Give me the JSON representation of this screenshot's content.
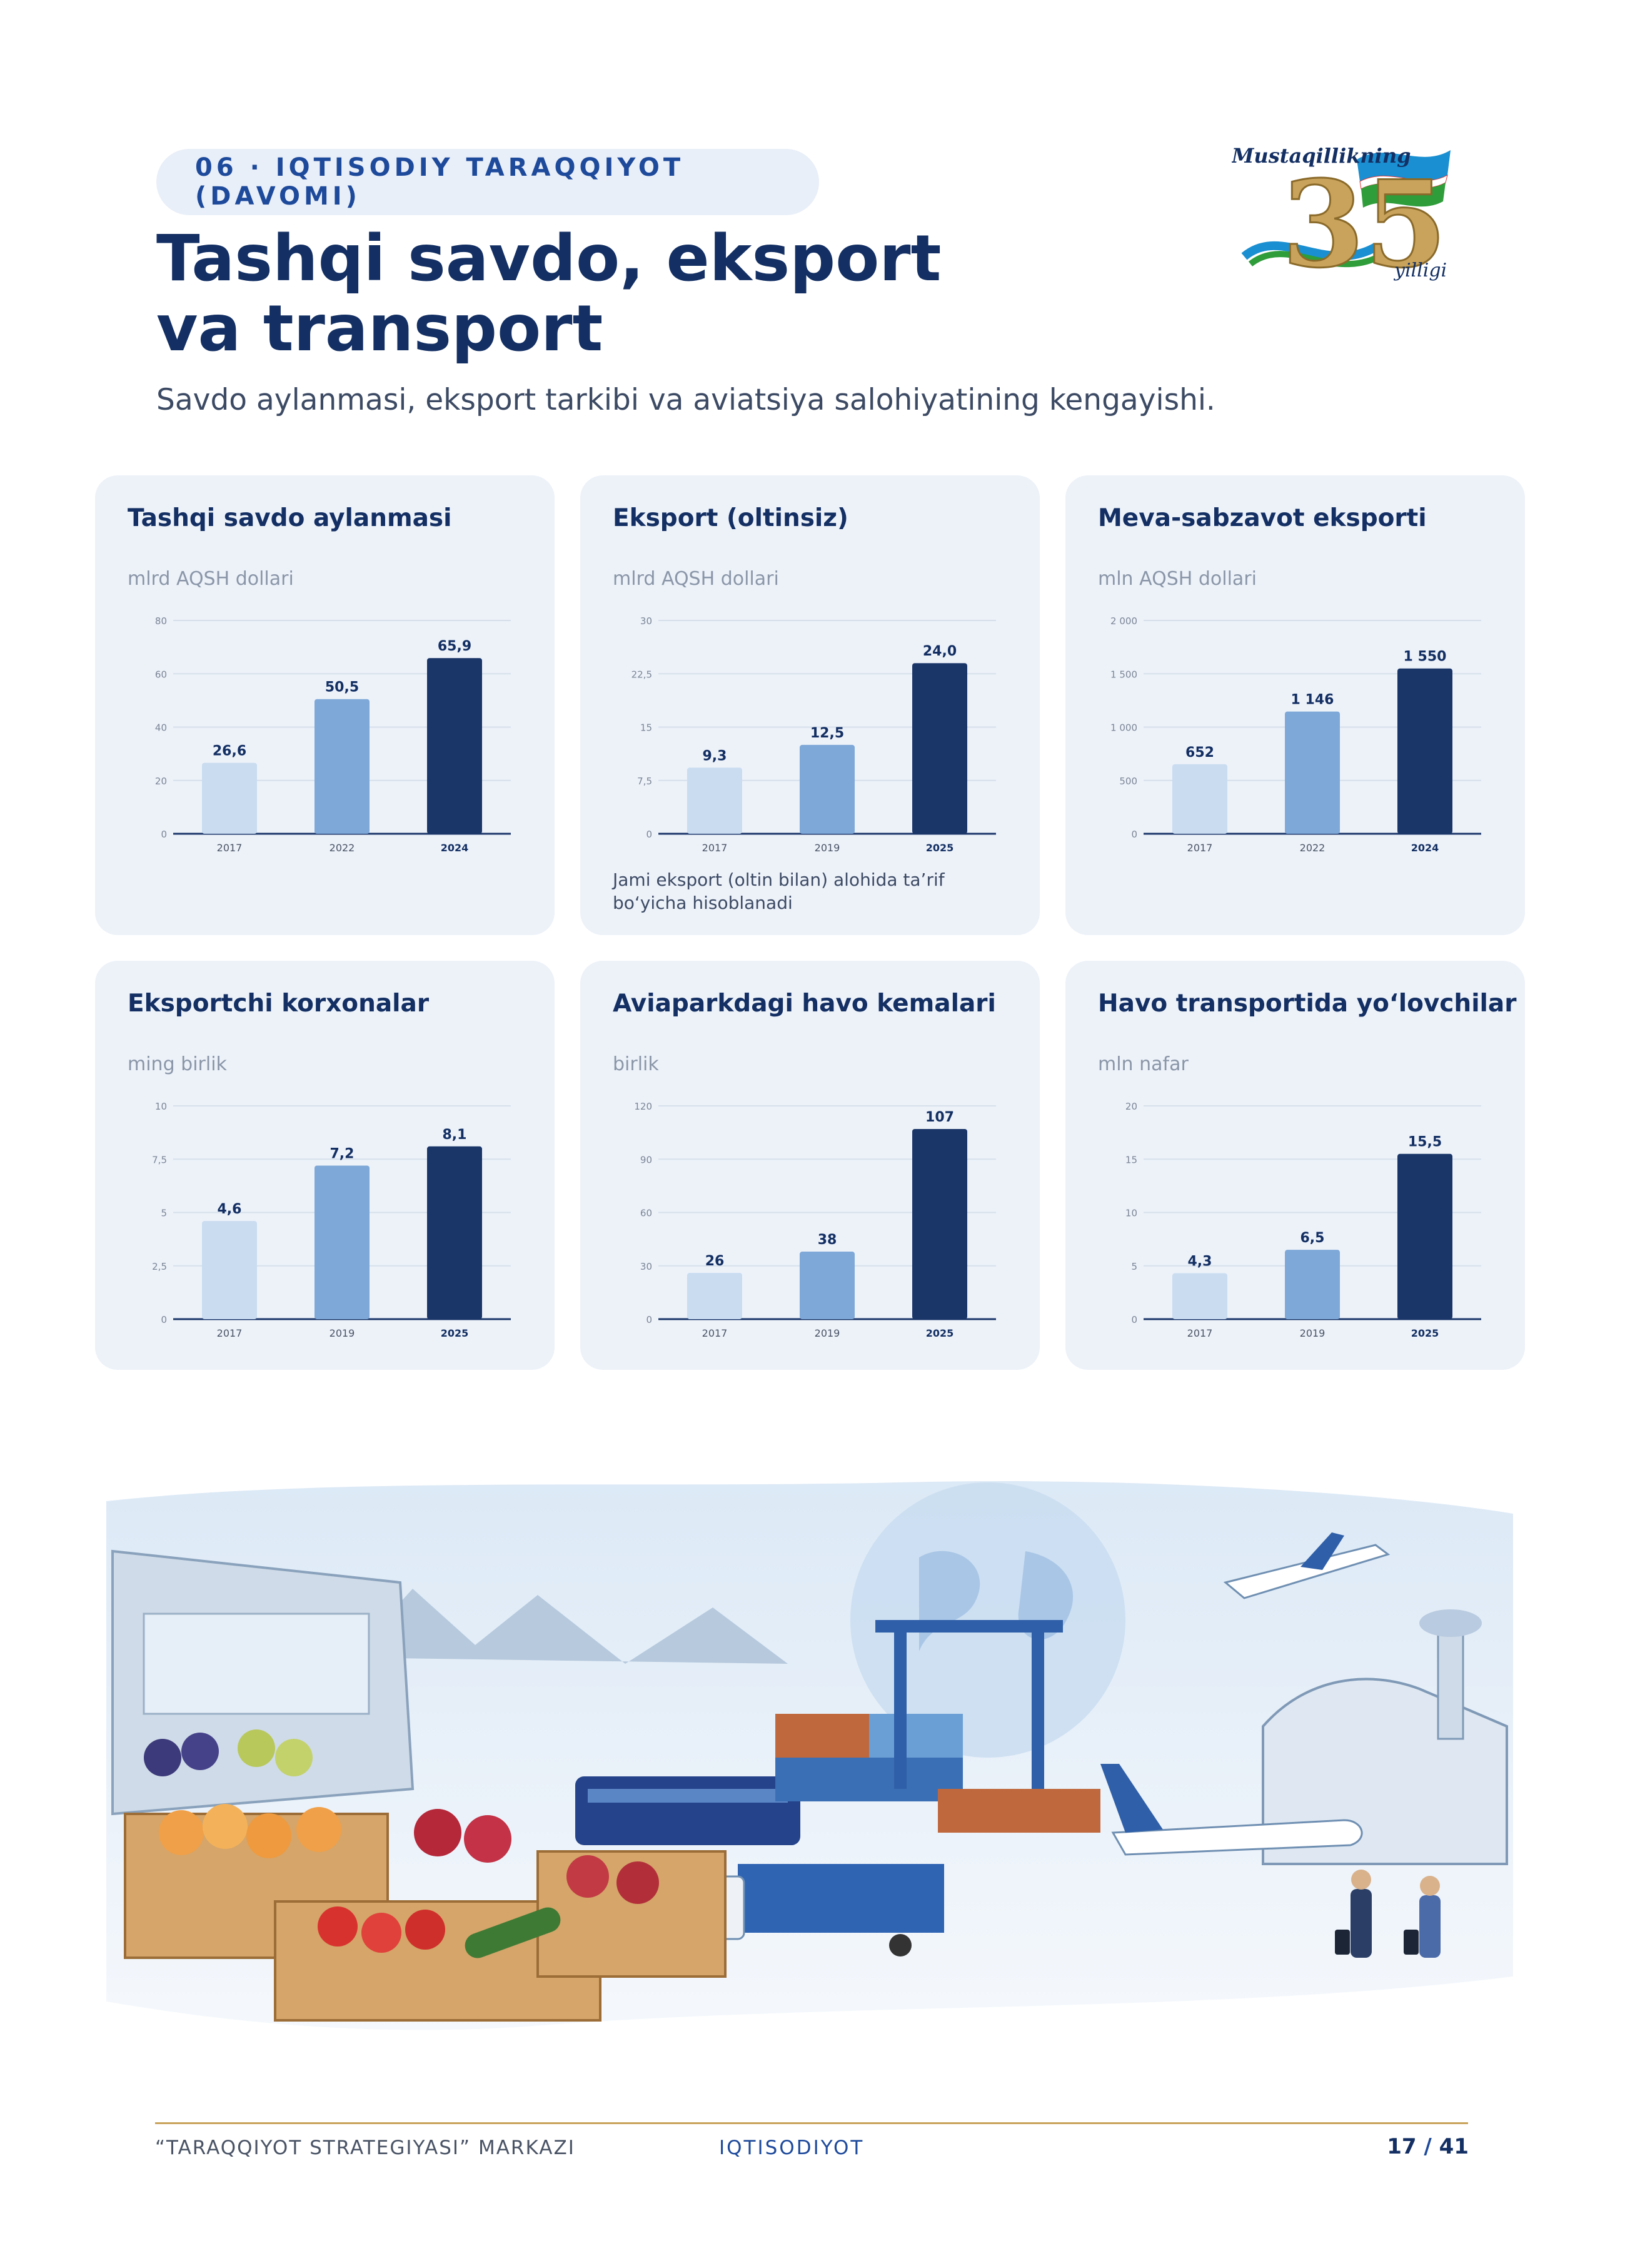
{
  "header": {
    "section_label": "06 · IQTISODIY TARAQQIYOT (DAVOMI)",
    "title": "Tashqi savdo, eksport va transport",
    "subtitle": "Savdo aylanmasi, eksport tarkibi va aviatsiya salohiyatining kengayishi."
  },
  "logo": {
    "top_text": "Mustaqillikning",
    "number": "35",
    "bottom_text": "yilligi",
    "colors": {
      "blue": "#1a8fd1",
      "green": "#2e9d3a",
      "gold": "#c9a35b"
    }
  },
  "colors": {
    "bar_light": "#c9dcf0",
    "bar_mid": "#7ea8d8",
    "bar_dark": "#1a3669",
    "card_bg": "#edf2f9",
    "accent": "#1e4a9c"
  },
  "chart_data": [
    {
      "type": "bar",
      "title": "Tashqi savdo aylanmasi",
      "ylabel": "mlrd AQSH dollari",
      "categories": [
        "2017",
        "2022",
        "2024"
      ],
      "values": [
        26.6,
        50.5,
        65.9
      ],
      "value_labels": [
        "26,6",
        "50,5",
        "65,9"
      ],
      "ylim": [
        0,
        80
      ],
      "yticks": [
        0,
        20,
        40,
        60,
        80
      ],
      "ytick_labels": [
        "0",
        "20",
        "40",
        "60",
        "80"
      ],
      "grid": true
    },
    {
      "type": "bar",
      "title": "Eksport (oltinsiz)",
      "ylabel": "mlrd AQSH dollari",
      "categories": [
        "2017",
        "2019",
        "2025"
      ],
      "values": [
        9.3,
        12.5,
        24.0
      ],
      "value_labels": [
        "9,3",
        "12,5",
        "24,0"
      ],
      "ylim": [
        0,
        30
      ],
      "yticks": [
        0,
        7.5,
        15,
        22.5,
        30
      ],
      "ytick_labels": [
        "0",
        "7,5",
        "15",
        "22,5",
        "30"
      ],
      "grid": true,
      "note": "Jami eksport (oltin bilan) alohida ta’rif bo‘yicha hisoblanadi"
    },
    {
      "type": "bar",
      "title": "Meva-sabzavot eksporti",
      "ylabel": "mln AQSH dollari",
      "categories": [
        "2017",
        "2022",
        "2024"
      ],
      "values": [
        652,
        1146,
        1550
      ],
      "value_labels": [
        "652",
        "1 146",
        "1 550"
      ],
      "ylim": [
        0,
        2000
      ],
      "yticks": [
        0,
        500,
        1000,
        1500,
        2000
      ],
      "ytick_labels": [
        "0",
        "500",
        "1 000",
        "1 500",
        "2 000"
      ],
      "grid": true
    },
    {
      "type": "bar",
      "title": "Eksportchi korxonalar",
      "ylabel": "ming birlik",
      "categories": [
        "2017",
        "2019",
        "2025"
      ],
      "values": [
        4.6,
        7.2,
        8.1
      ],
      "value_labels": [
        "4,6",
        "7,2",
        "8,1"
      ],
      "ylim": [
        0,
        10
      ],
      "yticks": [
        0,
        2.5,
        5,
        7.5,
        10
      ],
      "ytick_labels": [
        "0",
        "2,5",
        "5",
        "7,5",
        "10"
      ],
      "grid": true
    },
    {
      "type": "bar",
      "title": "Aviaparkdagi havo kemalari",
      "ylabel": "birlik",
      "categories": [
        "2017",
        "2019",
        "2025"
      ],
      "values": [
        26,
        38,
        107
      ],
      "value_labels": [
        "26",
        "38",
        "107"
      ],
      "ylim": [
        0,
        120
      ],
      "yticks": [
        0,
        30,
        60,
        90,
        120
      ],
      "ytick_labels": [
        "0",
        "30",
        "60",
        "90",
        "120"
      ],
      "grid": true
    },
    {
      "type": "bar",
      "title": "Havo transportida yo‘lovchilar",
      "ylabel": "mln nafar",
      "categories": [
        "2017",
        "2019",
        "2025"
      ],
      "values": [
        4.3,
        6.5,
        15.5
      ],
      "value_labels": [
        "4,3",
        "6,5",
        "15,5"
      ],
      "ylim": [
        0,
        20
      ],
      "yticks": [
        0,
        5,
        10,
        15,
        20
      ],
      "ytick_labels": [
        "0",
        "5",
        "10",
        "15",
        "20"
      ],
      "grid": true
    }
  ],
  "footer": {
    "left": "“TARAQQIYOT STRATEGIYASI” MARKAZI",
    "middle": "IQTISODIYOT",
    "page_current": "17",
    "page_separator": "/",
    "page_total": "41"
  }
}
